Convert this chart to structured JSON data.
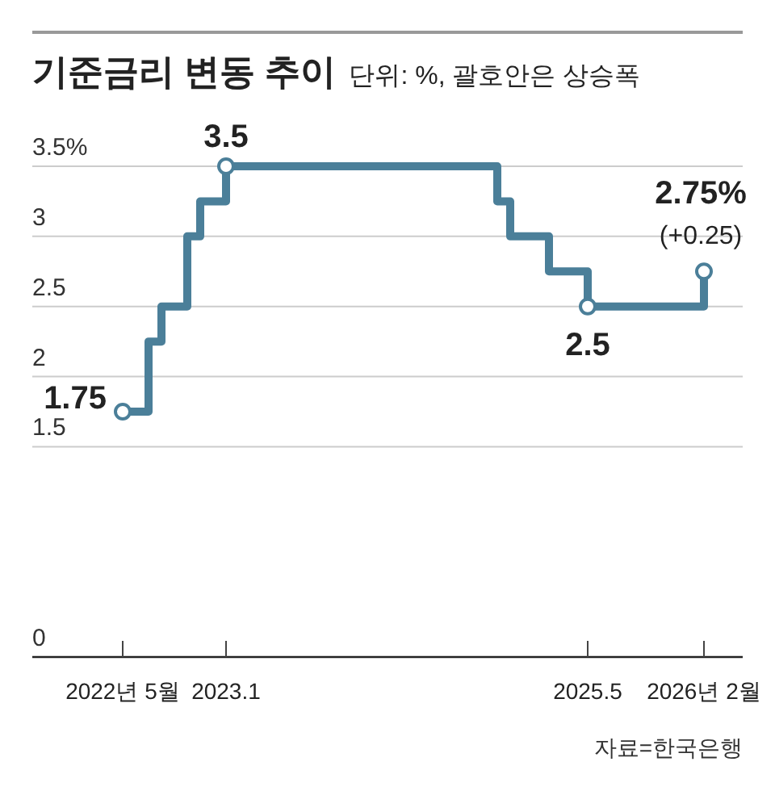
{
  "chart_data": {
    "type": "step",
    "title": "기준금리 변동 추이",
    "subtitle": "단위: %, 괄호안은 상승폭",
    "x": [
      "2022-05",
      "2022-07",
      "2022-08",
      "2022-10",
      "2022-11",
      "2023-01",
      "2024-10",
      "2024-11",
      "2025-02",
      "2025-05",
      "2026-02"
    ],
    "series": [
      {
        "color": "#4b7f99",
        "values": [
          1.75,
          2.25,
          2.5,
          3.0,
          3.25,
          3.5,
          3.25,
          3.0,
          2.75,
          2.5,
          2.75
        ]
      }
    ],
    "xlim": [
      "2021-10",
      "2026-05"
    ],
    "xticks": [
      {
        "value": "2022-05",
        "label": "2022년 5월"
      },
      {
        "value": "2023-01",
        "label": "2023.1"
      },
      {
        "value": "2025-05",
        "label": "2025.5"
      },
      {
        "value": "2026-02",
        "label": "2026년 2월"
      }
    ],
    "ylim": [
      0,
      3.5
    ],
    "yticks": [
      0,
      1.5,
      2,
      2.5,
      3,
      {
        "value": 3.5,
        "label": "3.5%"
      }
    ],
    "grid": "y",
    "line_style": "solid",
    "annotations": [
      {
        "text": "1.75",
        "x": "2022-05",
        "y": 1.75
      },
      {
        "text": "3.5",
        "x": "2023-01",
        "y": 3.5
      },
      {
        "text": "2.5",
        "x": "2025-05",
        "y": 2.5
      },
      {
        "text": "2.75%",
        "x": "2026-02",
        "y": 2.75
      },
      {
        "text": "(+0.25)",
        "x": "2026-02",
        "y": 2.75
      },
      "자료=한국은행"
    ]
  }
}
